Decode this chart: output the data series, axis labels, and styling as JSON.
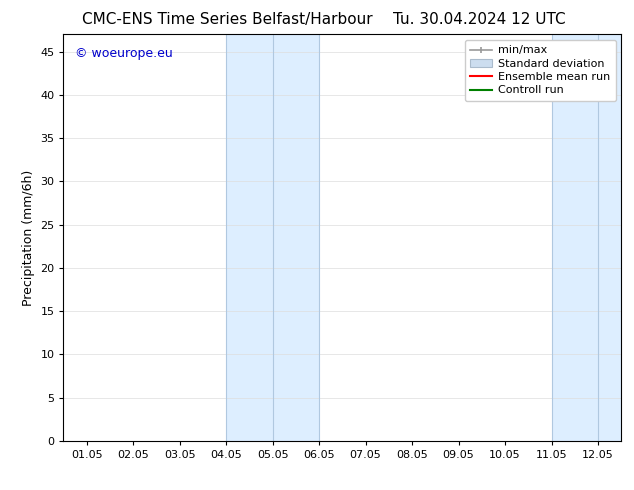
{
  "title_left": "CMC-ENS Time Series Belfast/Harbour",
  "title_right": "Tu. 30.04.2024 12 UTC",
  "xlabel": "",
  "ylabel": "Precipitation (mm/6h)",
  "ylim": [
    0,
    47
  ],
  "yticks": [
    0,
    5,
    10,
    15,
    20,
    25,
    30,
    35,
    40,
    45
  ],
  "xtick_labels": [
    "01.05",
    "02.05",
    "03.05",
    "04.05",
    "05.05",
    "06.05",
    "07.05",
    "08.05",
    "09.05",
    "10.05",
    "11.05",
    "12.05"
  ],
  "xtick_positions": [
    0,
    1,
    2,
    3,
    4,
    5,
    6,
    7,
    8,
    9,
    10,
    11
  ],
  "xlim": [
    -0.5,
    11.5
  ],
  "shaded_bands": [
    {
      "x_start": 3.0,
      "x_end": 5.0,
      "color": "#ddeeff"
    },
    {
      "x_start": 10.0,
      "x_end": 11.5,
      "color": "#ddeeff"
    }
  ],
  "band_vlines": [
    3.0,
    4.0,
    5.0,
    10.0,
    11.0
  ],
  "watermark_text": "© woeurope.eu",
  "watermark_color": "#0000cc",
  "legend_items": [
    {
      "label": "min/max",
      "color": "#aaaaaa",
      "style": "errorbar"
    },
    {
      "label": "Standard deviation",
      "color": "#ccddef",
      "style": "fill"
    },
    {
      "label": "Ensemble mean run",
      "color": "#ff0000",
      "style": "line"
    },
    {
      "label": "Controll run",
      "color": "#008000",
      "style": "line"
    }
  ],
  "background_color": "#ffffff",
  "plot_bg_color": "#ffffff",
  "title_fontsize": 11,
  "ylabel_fontsize": 9,
  "tick_fontsize": 8,
  "legend_fontsize": 8,
  "watermark_fontsize": 9
}
